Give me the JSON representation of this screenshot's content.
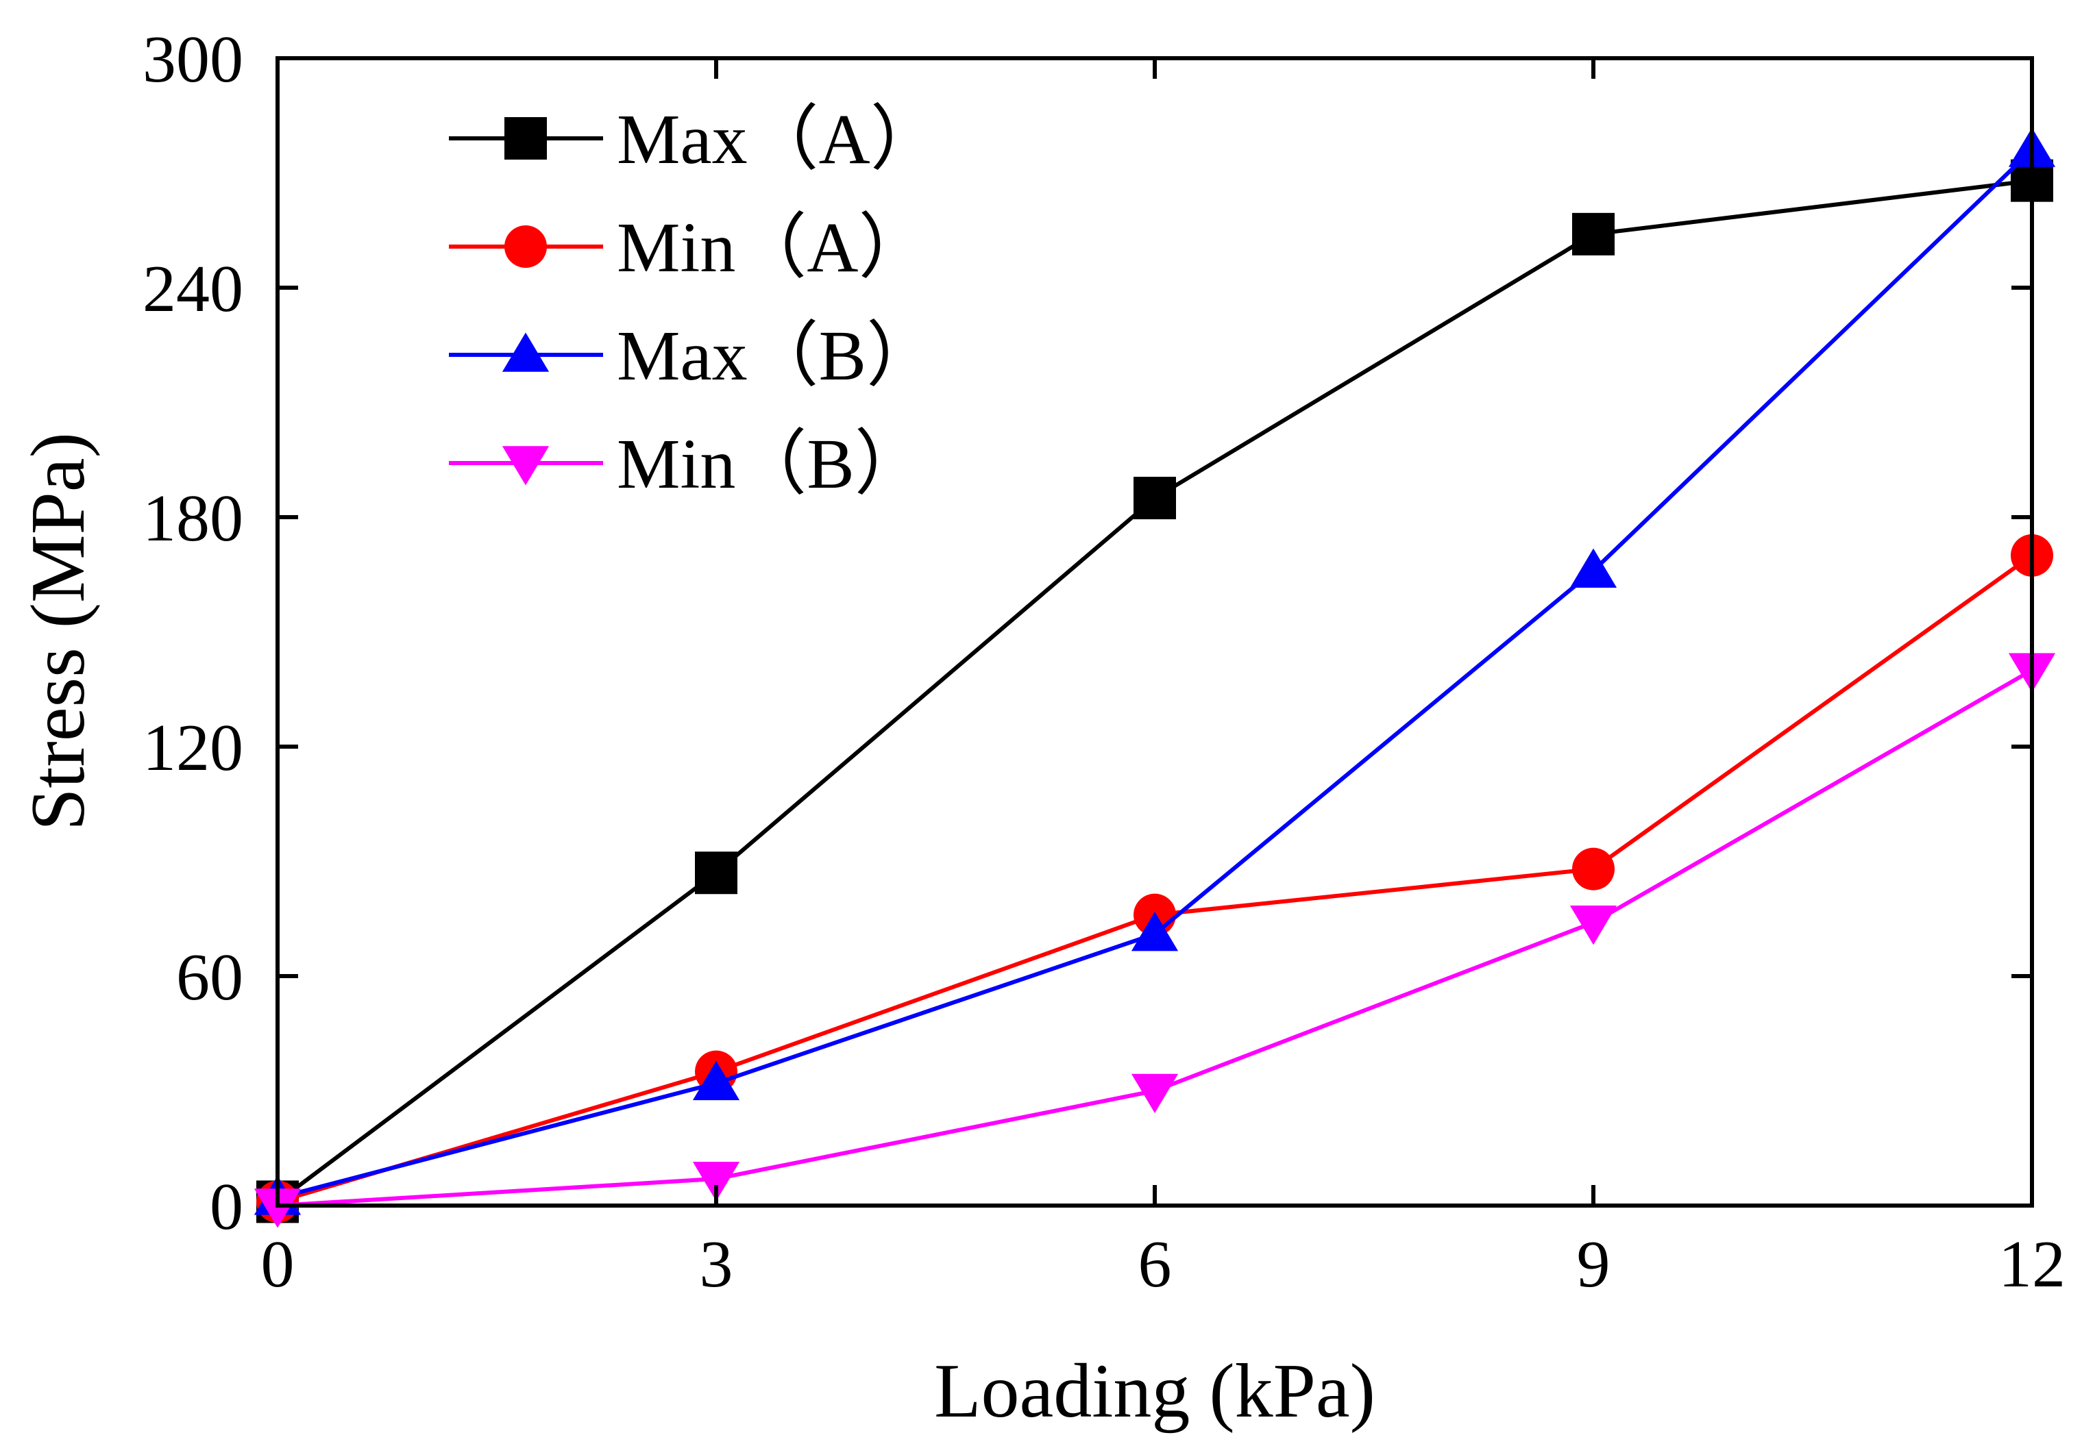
{
  "chart_data": {
    "type": "line",
    "title": "",
    "xlabel": "Loading (kPa)",
    "ylabel": "Stress (MPa)",
    "xlim": [
      0,
      12
    ],
    "ylim": [
      0,
      300
    ],
    "x": [
      0,
      3,
      6,
      9,
      12
    ],
    "xticks": [
      0,
      3,
      6,
      9,
      12
    ],
    "yticks": [
      0,
      60,
      120,
      180,
      240,
      300
    ],
    "xtick_labels": [
      "0",
      "3",
      "6",
      "9",
      "12"
    ],
    "ytick_labels": [
      "0",
      "60",
      "120",
      "180",
      "240",
      "300"
    ],
    "grid": false,
    "legend_position": "top-left",
    "series": [
      {
        "name": "Max（A）",
        "marker": "square",
        "color": "#000000",
        "values": [
          1,
          87,
          185,
          254,
          268
        ]
      },
      {
        "name": "Min（A）",
        "marker": "circle",
        "color": "#ff0000",
        "values": [
          1,
          35,
          76,
          88,
          170
        ]
      },
      {
        "name": "Max（B）",
        "marker": "triangle-up",
        "color": "#0000ff",
        "values": [
          2,
          32,
          71,
          166,
          276
        ]
      },
      {
        "name": "Min（B）",
        "marker": "triangle-down",
        "color": "#ff00ff",
        "values": [
          0,
          7,
          30,
          74,
          140
        ]
      }
    ]
  }
}
